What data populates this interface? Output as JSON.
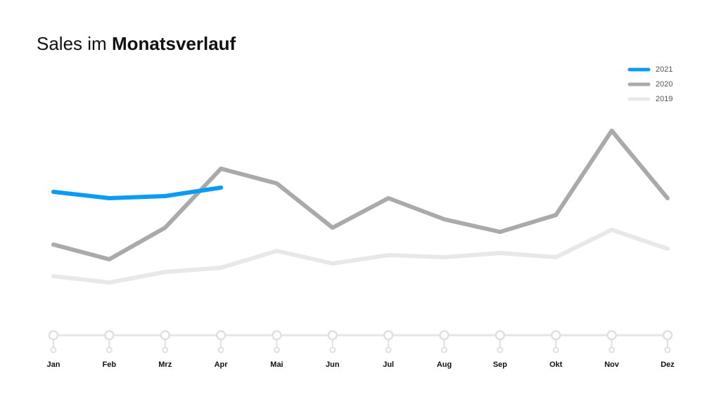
{
  "chart_data": {
    "type": "line",
    "title": "Sales im",
    "title_bold": "Monatsverlauf",
    "categories": [
      "Jan",
      "Feb",
      "Mrz",
      "Apr",
      "Mai",
      "Jun",
      "Jul",
      "Aug",
      "Sep",
      "Okt",
      "Nov",
      "Dez"
    ],
    "series": [
      {
        "name": "2021",
        "color": "#0a9cf5",
        "values": [
          68,
          65,
          66,
          70,
          null,
          null,
          null,
          null,
          null,
          null,
          null,
          null
        ]
      },
      {
        "name": "2020",
        "color": "#aaaaaa",
        "values": [
          43,
          36,
          51,
          79,
          72,
          51,
          65,
          55,
          49,
          57,
          97,
          65
        ]
      },
      {
        "name": "2019",
        "color": "#e8e8e8",
        "values": [
          28,
          25,
          30,
          32,
          40,
          34,
          38,
          37,
          39,
          37,
          50,
          41
        ]
      }
    ],
    "ylim": [
      0,
      100
    ],
    "legend": "top-right"
  }
}
